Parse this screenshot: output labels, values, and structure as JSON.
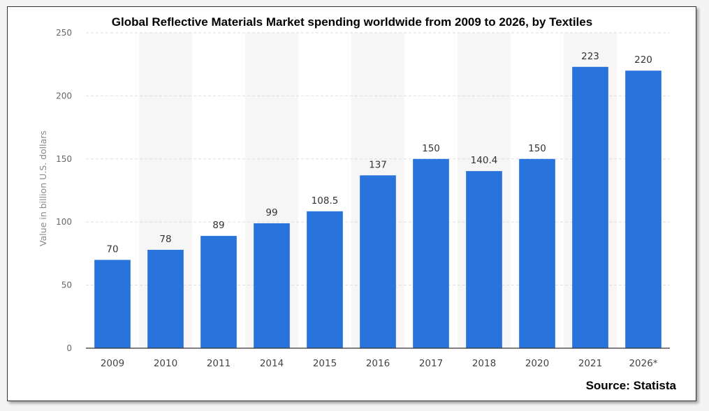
{
  "chart_data": {
    "type": "bar",
    "title": "Global Reflective Materials Market spending worldwide from 2009 to 2026, by Textiles",
    "ylabel": "Value in billion U.S. dollars",
    "xlabel": "",
    "categories": [
      "2009",
      "2010",
      "2011",
      "2014",
      "2015",
      "2016",
      "2017",
      "2018",
      "2020",
      "2021",
      "2026*"
    ],
    "values": [
      70,
      78,
      89,
      99,
      108.5,
      137,
      150,
      140.4,
      150,
      223,
      220
    ],
    "data_labels": [
      "70",
      "78",
      "89",
      "99",
      "108.5",
      "137",
      "150",
      "140.4",
      "150",
      "223",
      "220"
    ],
    "ylim": [
      0,
      250
    ],
    "yticks": [
      0,
      50,
      100,
      150,
      200,
      250
    ],
    "grid": true,
    "legend": "none",
    "colors": {
      "bar": "#2874dc",
      "band": "#f6f6f6",
      "grid": "#dedede",
      "axis": "#333333"
    }
  },
  "source": "Source: Statista"
}
